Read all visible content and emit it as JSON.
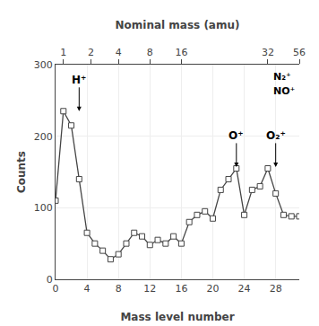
{
  "chart_data": {
    "type": "line",
    "x": [
      0,
      1,
      2,
      3,
      4,
      5,
      6,
      7,
      8,
      9,
      10,
      11,
      12,
      13,
      14,
      15,
      16,
      17,
      18,
      19,
      20,
      21,
      22,
      23,
      24,
      25,
      26,
      27,
      28,
      29,
      30,
      31
    ],
    "values": [
      110,
      235,
      215,
      140,
      65,
      50,
      40,
      28,
      35,
      50,
      65,
      60,
      48,
      55,
      50,
      60,
      50,
      80,
      90,
      95,
      85,
      125,
      140,
      155,
      90,
      125,
      130,
      155,
      120,
      90,
      88,
      88
    ],
    "xlabel": "Mass level number",
    "ylabel": "Counts",
    "x2label": "Nominal mass (amu)",
    "xlim": [
      0,
      31
    ],
    "ylim": [
      0,
      300
    ],
    "xticks": [
      0,
      4,
      8,
      12,
      16,
      20,
      24,
      28
    ],
    "yticks": [
      0,
      100,
      200,
      300
    ],
    "x2lim": [
      0,
      31
    ],
    "x2ticks": [
      1,
      {
        "value": 4.5,
        "label": "2"
      },
      {
        "value": 8.0,
        "label": "4"
      },
      {
        "value": 12.0,
        "label": "8"
      },
      16,
      {
        "value": 27.0,
        "label": "32"
      },
      {
        "value": 31.0,
        "label": "56"
      }
    ],
    "color": "#444444",
    "marker": "square",
    "grid": true,
    "annotations": [
      {
        "text": "H⁺",
        "x": 3,
        "y": 235,
        "arrow": true
      },
      {
        "text": "O⁺",
        "x": 23,
        "y": 157,
        "arrow": true
      },
      {
        "text": "N₂⁺",
        "x": 27.5,
        "y": 272,
        "arrow": false
      },
      {
        "text": "NO⁺",
        "x": 27.5,
        "y": 252,
        "arrow": false
      },
      {
        "text": "O₂⁺",
        "x": 28,
        "y": 157,
        "arrow": true
      }
    ]
  }
}
